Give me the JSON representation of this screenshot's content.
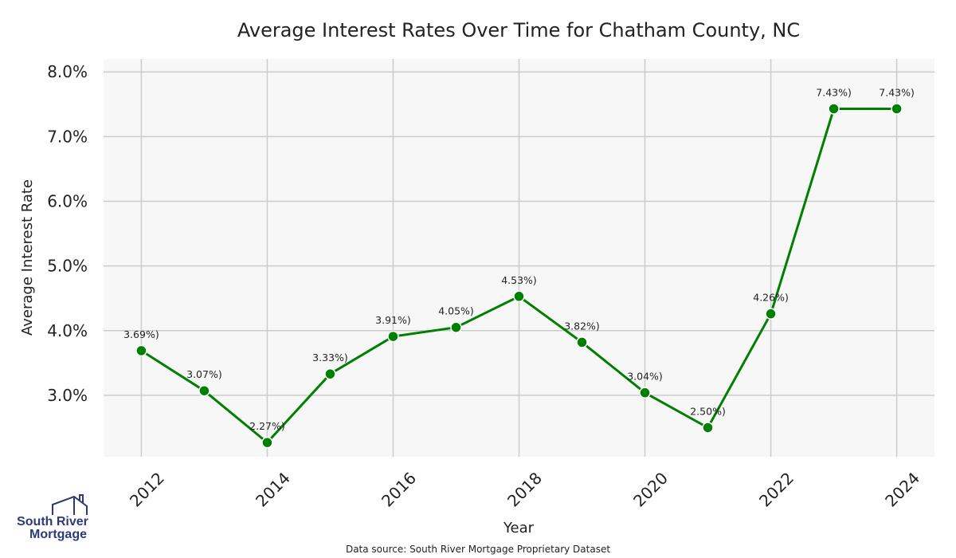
{
  "chart_data": {
    "type": "line",
    "title": "Average Interest Rates Over Time for Chatham County, NC",
    "xlabel": "Year",
    "ylabel": "Average Interest Rate",
    "x": [
      2012,
      2013,
      2014,
      2015,
      2016,
      2017,
      2018,
      2019,
      2020,
      2021,
      2022,
      2023,
      2024
    ],
    "y": [
      3.69,
      3.07,
      2.27,
      3.33,
      3.91,
      4.05,
      4.53,
      3.82,
      3.04,
      2.5,
      4.26,
      7.43,
      7.43
    ],
    "point_labels": [
      "3.69%)",
      "3.07%)",
      "2.27%)",
      "3.33%)",
      "3.91%)",
      "4.05%)",
      "4.53%)",
      "3.82%)",
      "3.04%)",
      "2.50%)",
      "4.26%)",
      "7.43%)",
      "7.43%)"
    ],
    "x_ticks": [
      2012,
      2014,
      2016,
      2018,
      2020,
      2022,
      2024
    ],
    "x_tick_labels": [
      "2012",
      "2014",
      "2016",
      "2018",
      "2020",
      "2022",
      "2024"
    ],
    "y_ticks": [
      3.0,
      4.0,
      5.0,
      6.0,
      7.0,
      8.0
    ],
    "y_tick_labels": [
      "3.0%",
      "4.0%",
      "5.0%",
      "6.0%",
      "7.0%",
      "8.0%"
    ],
    "xlim": [
      2011.4,
      2024.6
    ],
    "ylim": [
      2.05,
      8.2
    ],
    "grid": true,
    "line_color": "#008000",
    "marker_color": "#008000",
    "background_color": "#f7f7f7",
    "grid_color": "#cccccc"
  },
  "source_note": "Data source: South River Mortgage Proprietary Dataset",
  "logo": {
    "line1": "South River",
    "line2": "Mortgage",
    "icon": "house-outline-icon",
    "color": "#2e3a78"
  }
}
